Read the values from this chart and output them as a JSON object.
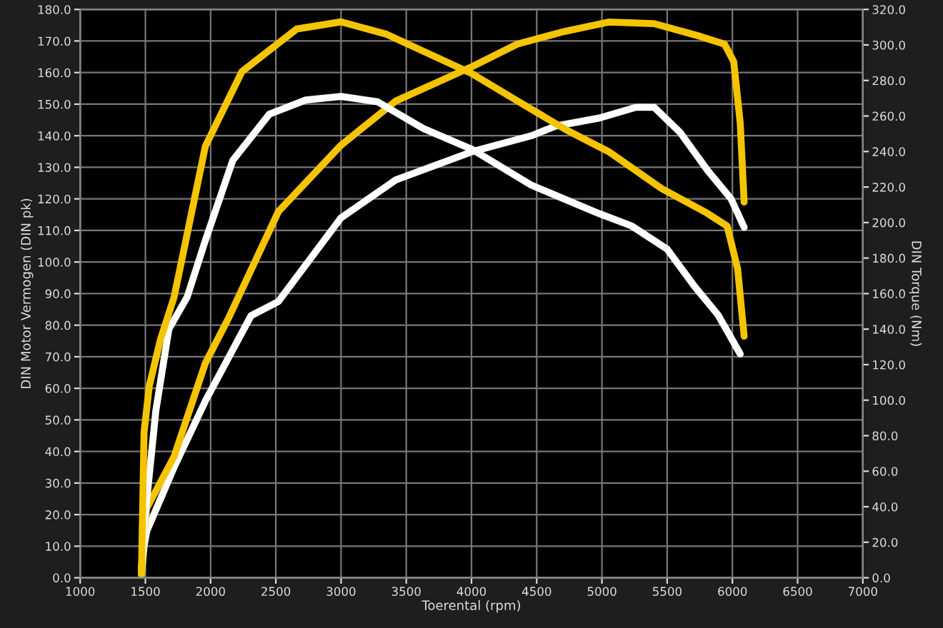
{
  "chart_data": {
    "type": "line",
    "xlabel": "Toerental (rpm)",
    "ylabel": "DIN Motor Vermogen (DIN pk)",
    "y2label": "DIN Torque (Nm)",
    "xlim": [
      1000,
      7000
    ],
    "xticks": [
      1000,
      1500,
      2000,
      2500,
      3000,
      3500,
      4000,
      4500,
      5000,
      5500,
      6000,
      6500,
      7000
    ],
    "ylim": [
      0,
      180
    ],
    "yticks": [
      {
        "value": 0,
        "label": "0.0"
      },
      {
        "value": 10,
        "label": "10.0"
      },
      {
        "value": 20,
        "label": "20.0"
      },
      {
        "value": 30,
        "label": "30.0"
      },
      {
        "value": 40,
        "label": "40.0"
      },
      {
        "value": 50,
        "label": "50.0"
      },
      {
        "value": 60,
        "label": "60.0"
      },
      {
        "value": 70,
        "label": "70.0"
      },
      {
        "value": 80,
        "label": "80.0"
      },
      {
        "value": 90,
        "label": "90.0"
      },
      {
        "value": 100,
        "label": "100.0"
      },
      {
        "value": 110,
        "label": "110.0"
      },
      {
        "value": 120,
        "label": "120.0"
      },
      {
        "value": 130,
        "label": "130.0"
      },
      {
        "value": 140,
        "label": "140.0"
      },
      {
        "value": 150,
        "label": "150.0"
      },
      {
        "value": 160,
        "label": "160.0"
      },
      {
        "value": 170,
        "label": "170.0"
      },
      {
        "value": 180,
        "label": "180.0"
      }
    ],
    "y2lim": [
      0,
      320
    ],
    "y2ticks": [
      {
        "value": 0,
        "label": "0.0"
      },
      {
        "value": 20,
        "label": "20.0"
      },
      {
        "value": 40,
        "label": "40.0"
      },
      {
        "value": 60,
        "label": "60.0"
      },
      {
        "value": 80,
        "label": "80.0"
      },
      {
        "value": 100,
        "label": "100.0"
      },
      {
        "value": 120,
        "label": "120.0"
      },
      {
        "value": 140,
        "label": "140.0"
      },
      {
        "value": 160,
        "label": "160.0"
      },
      {
        "value": 180,
        "label": "180.0"
      },
      {
        "value": 200,
        "label": "200.0"
      },
      {
        "value": 220,
        "label": "220.0"
      },
      {
        "value": 240,
        "label": "240.0"
      },
      {
        "value": 260,
        "label": "260.0"
      },
      {
        "value": 280,
        "label": "280.0"
      },
      {
        "value": 300,
        "label": "300.0"
      },
      {
        "value": 320,
        "label": "320.0"
      }
    ],
    "grid": true,
    "marker": "none",
    "line_style": "solid",
    "series": [
      {
        "color": "#ffffff",
        "axis": "y",
        "x": [
          1470,
          1490,
          1510,
          1720,
          1960,
          2310,
          2520,
          3000,
          3420,
          4010,
          4460,
          4640,
          4980,
          5260,
          5400,
          5600,
          5810,
          5990,
          6090
        ],
        "values": [
          1,
          10,
          14.7,
          35,
          56,
          83,
          87.5,
          114,
          126,
          135,
          140,
          143,
          145.6,
          149,
          149,
          141,
          129,
          120,
          111
        ]
      },
      {
        "color": "#ffffff",
        "axis": "y2",
        "x": [
          1470,
          1480,
          1490,
          1580,
          1680,
          1820,
          1960,
          2170,
          2450,
          2730,
          3000,
          3280,
          3630,
          4010,
          4460,
          4980,
          5230,
          5500,
          5710,
          5890,
          6060
        ],
        "values": [
          5,
          15,
          29,
          94,
          140,
          158,
          190,
          235,
          261,
          269,
          271,
          268,
          253,
          241,
          221,
          205,
          198,
          185,
          164,
          148,
          126
        ]
      },
      {
        "color": "#f5c400",
        "axis": "y",
        "x": [
          1470,
          1490,
          1510,
          1720,
          1960,
          2135,
          2520,
          3000,
          3420,
          4010,
          4350,
          4710,
          5050,
          5400,
          5750,
          5940,
          6010,
          6060,
          6090
        ],
        "values": [
          1,
          15,
          22,
          38.4,
          68,
          82,
          116,
          137,
          151,
          162,
          169,
          173,
          176,
          175.5,
          171.5,
          169,
          163.5,
          144,
          119
        ]
      },
      {
        "color": "#f5c400",
        "axis": "y2",
        "x": [
          1470,
          1480,
          1490,
          1530,
          1615,
          1720,
          1960,
          2240,
          2660,
          3000,
          3350,
          4000,
          4340,
          4730,
          5050,
          5460,
          5790,
          5960,
          6040,
          6090
        ],
        "values": [
          3,
          42,
          82,
          108,
          134,
          158,
          243,
          285,
          309,
          313,
          306,
          284,
          269,
          252,
          240,
          219,
          206,
          198,
          174,
          136
        ]
      }
    ]
  }
}
